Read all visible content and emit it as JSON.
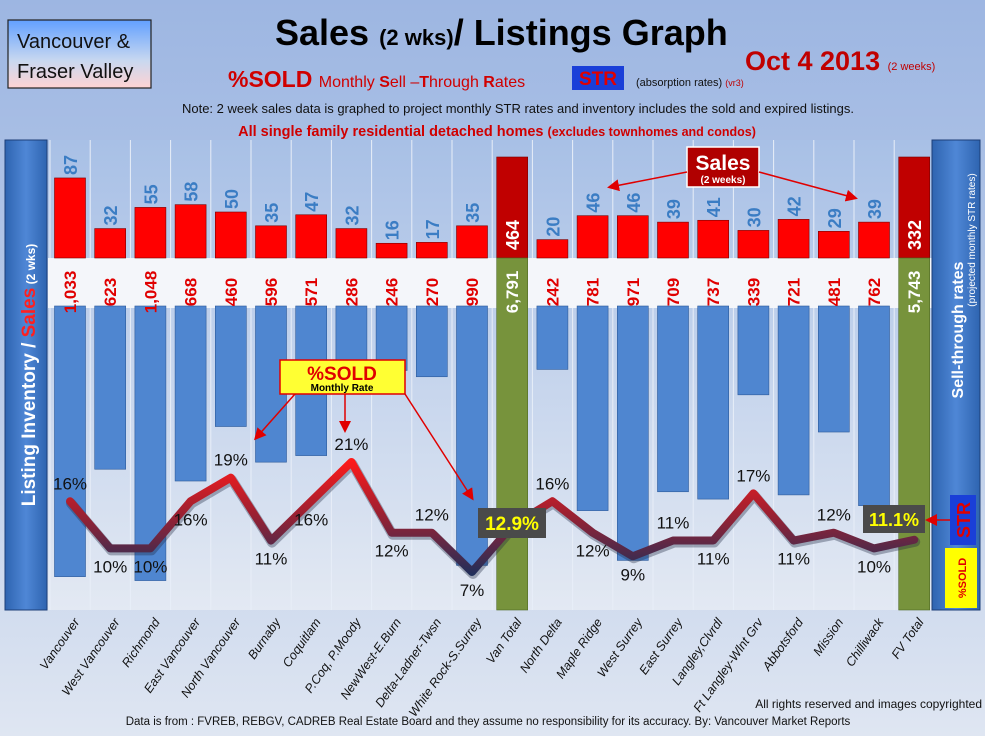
{
  "header": {
    "region_line1": "Vancouver &",
    "region_line2": "Fraser Valley",
    "title_main1": "Sales",
    "title_small": "(2 wks)",
    "title_main2": "/ Listings Graph",
    "date": "Oct 4 2013",
    "date_note": "(2 weeks)",
    "sold_label": "%SOLD",
    "subtitle_words": [
      "Monthly ",
      "S",
      "ell –",
      "T",
      "hrough ",
      "R",
      "ates"
    ],
    "str_badge": "STR",
    "absorption": "(absorption rates)",
    "version": "(vr3)",
    "note": "Note: 2 week sales data is graphed to project monthly STR rates and inventory includes the sold and expired listings.",
    "scope_main": "All single family residential detached homes",
    "scope_paren": "(excludes townhomes and condos)"
  },
  "left_axis": {
    "part1": "Listing Inventory / ",
    "part2": "Sales",
    "part3": " (2 wks)"
  },
  "right_axis": {
    "main": "Sell-through rates",
    "sub": "(projected monthly STR rates)",
    "str": "STR",
    "sold": "%SOLD"
  },
  "annotations": {
    "sales_title": "Sales",
    "sales_sub": "(2 weeks)",
    "sold_title": "%SOLD",
    "sold_sub": "Monthly Rate",
    "van_total_rate": "12.9%",
    "fv_total_rate": "11.1%"
  },
  "footer": {
    "rights": "All rights reserved and  images copyrighted",
    "source": "Data is from : FVREB, REBGV, CADREB Real Estate Board and they assume no responsibility for its accuracy. By: Vancouver Market Reports"
  },
  "colors": {
    "sales": "#ff0000",
    "sales_total": "#c00000",
    "listings": "#4f86d0",
    "listings_total": "#77933c",
    "line_high": "#ff1a1a",
    "line_low": "#1f2f5a"
  },
  "chart_data": {
    "type": "bar",
    "title": "Sales (2 wks)/ Listings Graph",
    "ylabel": "Listing Inventory / Sales (2 wks)",
    "y2label": "Sell-through rates (projected monthly STR rates)",
    "categories": [
      "Vancouver",
      "West Vancouver",
      "Richmond",
      "East Vancouver",
      "North Vancouver",
      "Burnaby",
      "Coquitlam",
      "P.Coq, P.Moody",
      "NewWest-E.Burn",
      "Delta-Ladner-Twsn",
      "White Rock-S.Surrey",
      "Van Total",
      "North Delta",
      "Maple Ridge",
      "West Surrey",
      "East Surrey",
      "Langley,Clvrdl",
      "Ft Langley-Wlnt Grv",
      "Abbotsford",
      "Mission",
      "Chilliwack",
      "FV Total"
    ],
    "totals": [
      "Van Total",
      "FV Total"
    ],
    "series": [
      {
        "name": "Sales (2 weeks)",
        "type": "bar",
        "values": [
          87,
          32,
          55,
          58,
          50,
          35,
          47,
          32,
          16,
          17,
          35,
          464,
          20,
          46,
          46,
          39,
          41,
          30,
          42,
          29,
          39,
          332
        ],
        "labels": [
          "87",
          "32",
          "55",
          "58",
          "50",
          "35",
          "47",
          "32",
          "16",
          "17",
          "35",
          "464",
          "20",
          "46",
          "46",
          "39",
          "41",
          "30",
          "42",
          "29",
          "39",
          "332"
        ]
      },
      {
        "name": "Listing Inventory",
        "type": "bar",
        "values": [
          1033,
          623,
          1048,
          668,
          460,
          596,
          571,
          286,
          246,
          270,
          990,
          6791,
          242,
          781,
          971,
          709,
          737,
          339,
          721,
          481,
          762,
          5743
        ],
        "labels": [
          "1,033",
          "623",
          "1,048",
          "668",
          "460",
          "596",
          "571",
          "286",
          "246",
          "270",
          "990",
          "6,791",
          "242",
          "781",
          "971",
          "709",
          "737",
          "339",
          "721",
          "481",
          "762",
          "5,743"
        ]
      },
      {
        "name": "%SOLD Monthly Rate (STR)",
        "type": "line",
        "values": [
          16,
          10,
          10,
          16,
          19,
          11,
          16,
          21,
          12,
          12,
          7,
          12.9,
          16,
          12,
          9,
          11,
          11,
          17,
          11,
          12,
          10,
          11.1
        ],
        "labels": [
          "16%",
          "10%",
          "10%",
          "16%",
          "19%",
          "11%",
          "16%",
          "21%",
          "12%",
          "12%",
          "7%",
          "",
          "16%",
          "12%",
          "9%",
          "11%",
          "11%",
          "17%",
          "11%",
          "12%",
          "10%",
          ""
        ]
      }
    ]
  }
}
